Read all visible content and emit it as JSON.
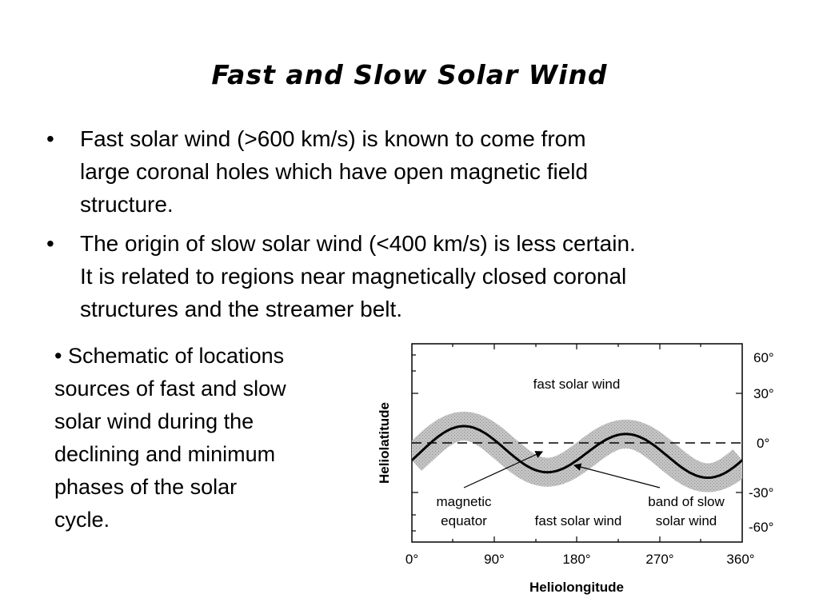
{
  "slide": {
    "title": "Fast and Slow Solar Wind",
    "bullet_marker": "•",
    "bullets": [
      {
        "lines": [
          "Fast solar wind (>600 km/s) is known  to come from",
          "large coronal holes which have open magnetic field",
          "structure."
        ]
      },
      {
        "lines": [
          "The origin of slow solar wind (<400 km/s) is less certain.",
          "It is related to regions near magnetically closed coronal",
          "structures and the streamer belt."
        ]
      }
    ],
    "side_note": {
      "marker": "•",
      "lines": [
        "Schematic of locations",
        "sources of fast and slow",
        "solar wind during the",
        "declining and minimum",
        "phases of the solar",
        "cycle."
      ]
    }
  },
  "diagram": {
    "x_label": "Heliolongitude",
    "y_label": "Heliolatitude",
    "x_ticks": [
      "0°",
      "90°",
      "180°",
      "270°",
      "360°"
    ],
    "y_ticks": [
      "60°",
      "30°",
      "0°",
      "-30°",
      "-60°"
    ],
    "labels": {
      "fast_top": "fast solar wind",
      "fast_bottom": "fast solar wind",
      "magnetic_equator": [
        "magnetic",
        "equator"
      ],
      "slow_band": [
        "band of slow",
        "solar wind"
      ]
    }
  }
}
